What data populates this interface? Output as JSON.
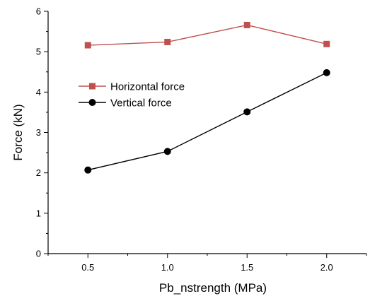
{
  "chart_data": {
    "type": "line",
    "xlabel": "Pb_nstrength (MPa)",
    "ylabel": "Force (kN)",
    "x": [
      0.5,
      1.0,
      1.5,
      2.0
    ],
    "x_tick_labels": [
      "0.5",
      "1.0",
      "1.5",
      "2.0"
    ],
    "y_tick_labels": [
      "0",
      "1",
      "2",
      "3",
      "4",
      "5",
      "6"
    ],
    "xlim": [
      0.25,
      2.25
    ],
    "ylim": [
      0,
      6
    ],
    "grid": false,
    "legend_position": "center-left",
    "series": [
      {
        "name": "Horizontal force",
        "values": [
          5.16,
          5.24,
          5.66,
          5.19
        ],
        "color": "#c0504d",
        "marker": "square"
      },
      {
        "name": "Vertical force",
        "values": [
          2.07,
          2.53,
          3.51,
          4.48
        ],
        "color": "#000000",
        "marker": "circle"
      }
    ]
  }
}
